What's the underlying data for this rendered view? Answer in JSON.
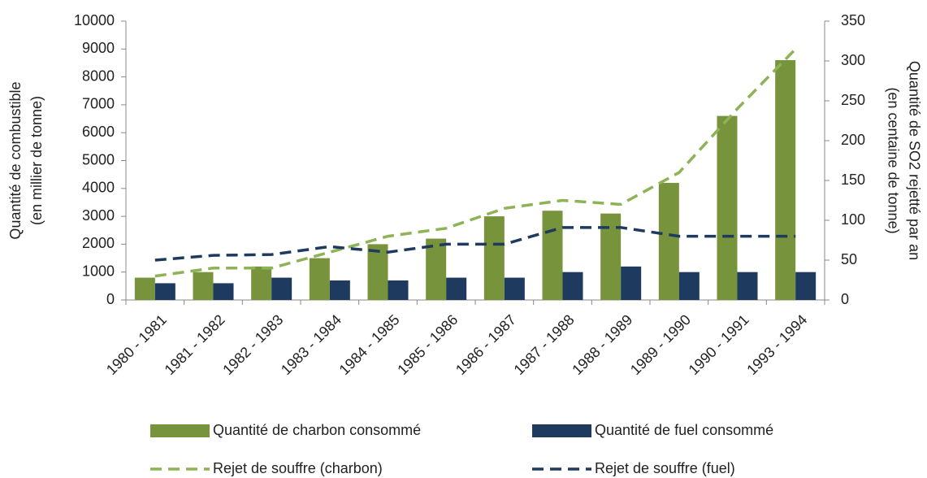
{
  "chart_data": {
    "type": "bar_line",
    "y_label": [
      "Quantité de combustible",
      "(en millier de tonne)"
    ],
    "y2_label": [
      "Quantité de SO2 rejetté par an",
      "(en centaine de tonne)"
    ],
    "categories": [
      "1980 - 1981",
      "1981 - 1982",
      "1982 - 1983",
      "1983 - 1984",
      "1984 - 1985",
      "1985 - 1986",
      "1986 - 1987",
      "1987 - 1988",
      "1988 - 1989",
      "1989 - 1990",
      "1990 - 1991",
      "1993 - 1994"
    ],
    "series": [
      {
        "name": "Quantité de charbon consommé",
        "color": "#77933c",
        "kind": "bar",
        "values": [
          800,
          1000,
          1200,
          1500,
          2000,
          2200,
          3000,
          3200,
          3100,
          4200,
          6600,
          8600
        ]
      },
      {
        "name": "Quantité de fuel consommé",
        "color": "#1f3a5f",
        "kind": "bar",
        "values": [
          600,
          600,
          800,
          700,
          700,
          800,
          800,
          1000,
          1200,
          1000,
          1000,
          1000
        ]
      },
      {
        "name": "Rejet de souffre (charbon)",
        "color": "#8db356",
        "kind": "line",
        "axis": "y2",
        "values": [
          30,
          40,
          40,
          60,
          80,
          90,
          115,
          125,
          120,
          160,
          240,
          315
        ]
      },
      {
        "name": "Rejet de souffre (fuel)",
        "color": "#1f3a5f",
        "kind": "line",
        "axis": "y2",
        "values": [
          50,
          56,
          57,
          67,
          60,
          70,
          70,
          91,
          91,
          80,
          80,
          80
        ]
      }
    ],
    "ylim": [
      0,
      10000
    ],
    "yticks": [
      0,
      1000,
      2000,
      3000,
      4000,
      5000,
      6000,
      7000,
      8000,
      9000,
      10000
    ],
    "y2lim": [
      0,
      350
    ],
    "y2ticks": [
      0,
      50,
      100,
      150,
      200,
      250,
      300,
      350
    ]
  }
}
